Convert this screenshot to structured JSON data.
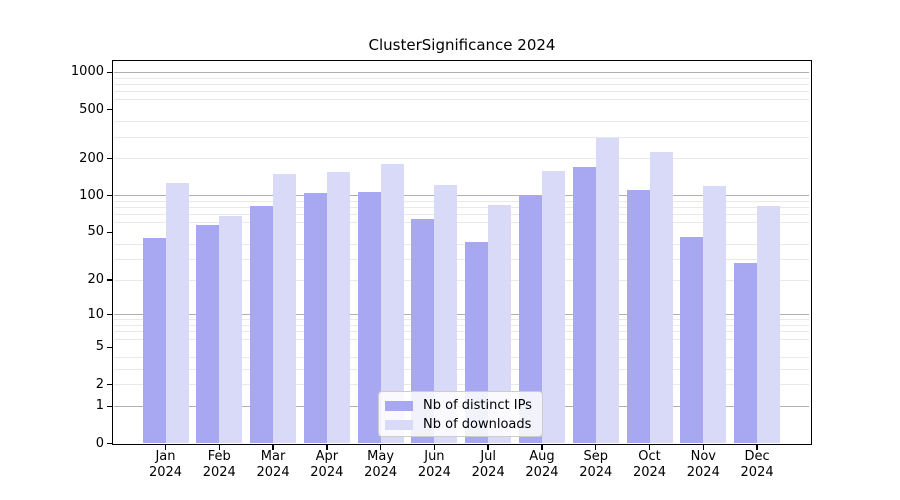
{
  "chart_data": {
    "type": "bar",
    "title": "ClusterSignificance 2024",
    "categories": [
      "Jan",
      "Feb",
      "Mar",
      "Apr",
      "May",
      "Jun",
      "Jul",
      "Aug",
      "Sep",
      "Oct",
      "Nov",
      "Dec"
    ],
    "x_year_label": "2024",
    "series": [
      {
        "name": "Nb of distinct IPs",
        "color": "#a8a8f2",
        "values": [
          45,
          57,
          82,
          105,
          107,
          64,
          42,
          100,
          170,
          112,
          46,
          28
        ]
      },
      {
        "name": "Nb of downloads",
        "color": "#d9d9f8",
        "values": [
          128,
          68,
          150,
          155,
          180,
          122,
          84,
          158,
          292,
          228,
          119,
          82
        ]
      }
    ],
    "y_axis": {
      "scale": "log1p",
      "ticks": [
        0,
        1,
        2,
        5,
        10,
        20,
        50,
        100,
        200,
        500,
        1000
      ],
      "major_grid_ticks": [
        1,
        10,
        100,
        1000
      ],
      "minor_grid_ticks": [
        2,
        3,
        4,
        6,
        7,
        8,
        9,
        20,
        30,
        40,
        60,
        70,
        80,
        90,
        200,
        300,
        400,
        600,
        700,
        800,
        900
      ],
      "ylim": [
        0,
        1250
      ]
    },
    "legend": {
      "location": "lower center"
    },
    "grid": true,
    "colors": {
      "grid_major": "#b0b0b0",
      "grid_minor": "#e9e9e9",
      "axis": "#000000",
      "background": "#ffffff"
    }
  }
}
